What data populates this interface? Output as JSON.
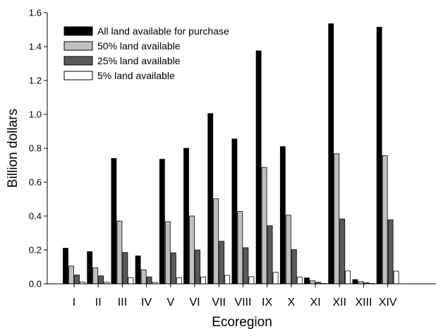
{
  "chart_data": {
    "type": "bar",
    "title": "",
    "xlabel": "Ecoregion",
    "ylabel": "Billion dollars",
    "ylim": [
      0,
      1.6
    ],
    "yticks": [
      "0.0",
      "0.2",
      "0.4",
      "0.6",
      "0.8",
      "1.0",
      "1.2",
      "1.4",
      "1.6"
    ],
    "grid": false,
    "legend_position": "top-left",
    "categories": [
      "I",
      "II",
      "III",
      "IV",
      "V",
      "VI",
      "VII",
      "VIII",
      "IX",
      "X",
      "XI",
      "XII",
      "XIII",
      "XIV"
    ],
    "series": [
      {
        "name": "All land available for purchase",
        "color": "#000000",
        "values": [
          0.21,
          0.19,
          0.74,
          0.165,
          0.735,
          0.8,
          1.005,
          0.855,
          1.375,
          0.81,
          0.035,
          1.535,
          0.025,
          1.515
        ]
      },
      {
        "name": "50% land available",
        "color": "#c0c0c0",
        "values": [
          0.105,
          0.095,
          0.37,
          0.083,
          0.367,
          0.4,
          0.502,
          0.427,
          0.687,
          0.405,
          0.018,
          0.767,
          0.013,
          0.757
        ]
      },
      {
        "name": "25% land available",
        "color": "#5a5a5a",
        "values": [
          0.052,
          0.047,
          0.185,
          0.041,
          0.183,
          0.2,
          0.251,
          0.213,
          0.343,
          0.202,
          0.009,
          0.383,
          0.006,
          0.378
        ]
      },
      {
        "name": "5% land available",
        "color": "#ffffff",
        "values": [
          0.01,
          0.009,
          0.037,
          0.008,
          0.036,
          0.04,
          0.05,
          0.042,
          0.068,
          0.04,
          0.002,
          0.076,
          0.001,
          0.075
        ]
      }
    ]
  }
}
